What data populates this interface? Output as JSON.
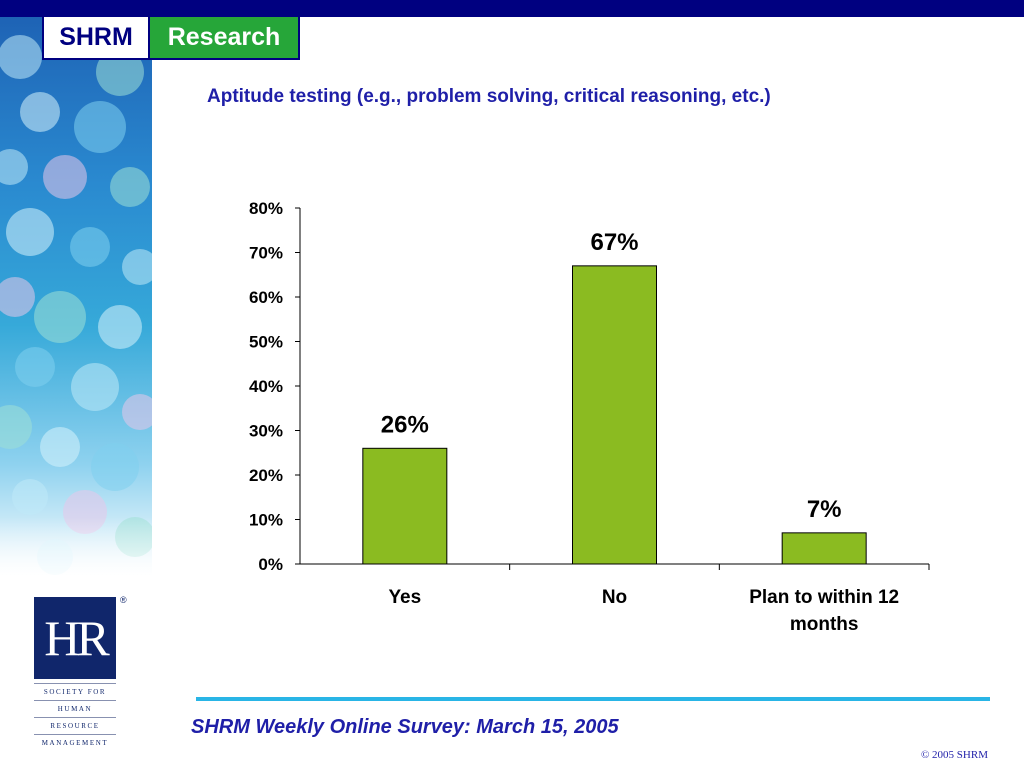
{
  "header": {
    "brand_left": "SHRM",
    "brand_right": "Research"
  },
  "colors": {
    "navy": "#000080",
    "green_brand": "#26a639",
    "bar": "#8bbb21",
    "title_blue": "#1f1fa8",
    "rule_cyan": "#29b5e6"
  },
  "chart_data": {
    "type": "bar",
    "title": "Aptitude testing (e.g., problem solving, critical reasoning, etc.)",
    "categories": [
      "Yes",
      "No",
      "Plan to within 12 months"
    ],
    "values": [
      26,
      67,
      7
    ],
    "value_labels": [
      "26%",
      "67%",
      "7%"
    ],
    "ylim": [
      0,
      80
    ],
    "yticks": [
      0,
      10,
      20,
      30,
      40,
      50,
      60,
      70,
      80
    ],
    "ytick_labels": [
      "0%",
      "10%",
      "20%",
      "30%",
      "40%",
      "50%",
      "60%",
      "70%",
      "80%"
    ],
    "xlabel": "",
    "ylabel": "",
    "grid": false,
    "legend": "none"
  },
  "logo": {
    "mark": "HR",
    "registered": "®",
    "lines": [
      "SOCIETY FOR",
      "HUMAN",
      "RESOURCE",
      "MANAGEMENT"
    ]
  },
  "footer": {
    "title": "SHRM Weekly Online Survey: March 15, 2005",
    "copyright": "© 2005 SHRM"
  }
}
